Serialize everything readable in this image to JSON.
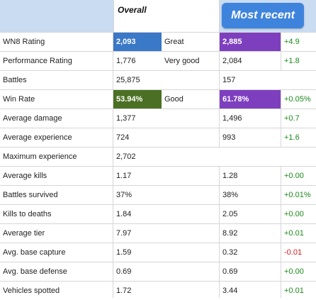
{
  "header": {
    "overall_label": "Overall",
    "recent_button_label": "Most recent"
  },
  "colors": {
    "header_bg": "#c9dcf2",
    "button_bg": "#3f84dc",
    "wn8_overall_bg": "#3a78c8",
    "wn8_recent_bg": "#7e3fbf",
    "winrate_overall_bg": "#4b7023",
    "winrate_recent_bg": "#7e3fbf",
    "positive_delta": "#1a8a1a",
    "negative_delta": "#d42020"
  },
  "rows": [
    {
      "label": "WN8 Rating",
      "overall": "2,093",
      "rating": "Great",
      "recent": "2,885",
      "delta": "+4.9"
    },
    {
      "label": "Performance Rating",
      "overall": "1,776",
      "rating": "Very good",
      "recent": "2,084",
      "delta": "+1.8"
    },
    {
      "label": "Battles",
      "overall": "25,875",
      "rating": "",
      "recent": "157",
      "delta": ""
    },
    {
      "label": "Win Rate",
      "overall": "53.94%",
      "rating": "Good",
      "recent": "61.78%",
      "delta": "+0.05%"
    },
    {
      "label": "Average damage",
      "overall": "1,377",
      "rating": "",
      "recent": "1,496",
      "delta": "+0.7"
    },
    {
      "label": "Average experience",
      "overall": "724",
      "rating": "",
      "recent": "993",
      "delta": "+1.6"
    },
    {
      "label": "Maximum experience",
      "overall": "2,702",
      "rating": "",
      "recent": "",
      "delta": ""
    },
    {
      "label": "Average kills",
      "overall": "1.17",
      "rating": "",
      "recent": "1.28",
      "delta": "+0.00"
    },
    {
      "label": "Battles survived",
      "overall": "37%",
      "rating": "",
      "recent": "38%",
      "delta": "+0.01%"
    },
    {
      "label": "Kills to deaths",
      "overall": "1.84",
      "rating": "",
      "recent": "2.05",
      "delta": "+0.00"
    },
    {
      "label": "Average tier",
      "overall": "7.97",
      "rating": "",
      "recent": "8.92",
      "delta": "+0.01"
    },
    {
      "label": "Avg. base capture",
      "overall": "1.59",
      "rating": "",
      "recent": "0.32",
      "delta": "-0.01"
    },
    {
      "label": "Avg. base defense",
      "overall": "0.69",
      "rating": "",
      "recent": "0.69",
      "delta": "+0.00"
    },
    {
      "label": "Vehicles spotted",
      "overall": "1.72",
      "rating": "",
      "recent": "3.44",
      "delta": "+0.01"
    }
  ]
}
